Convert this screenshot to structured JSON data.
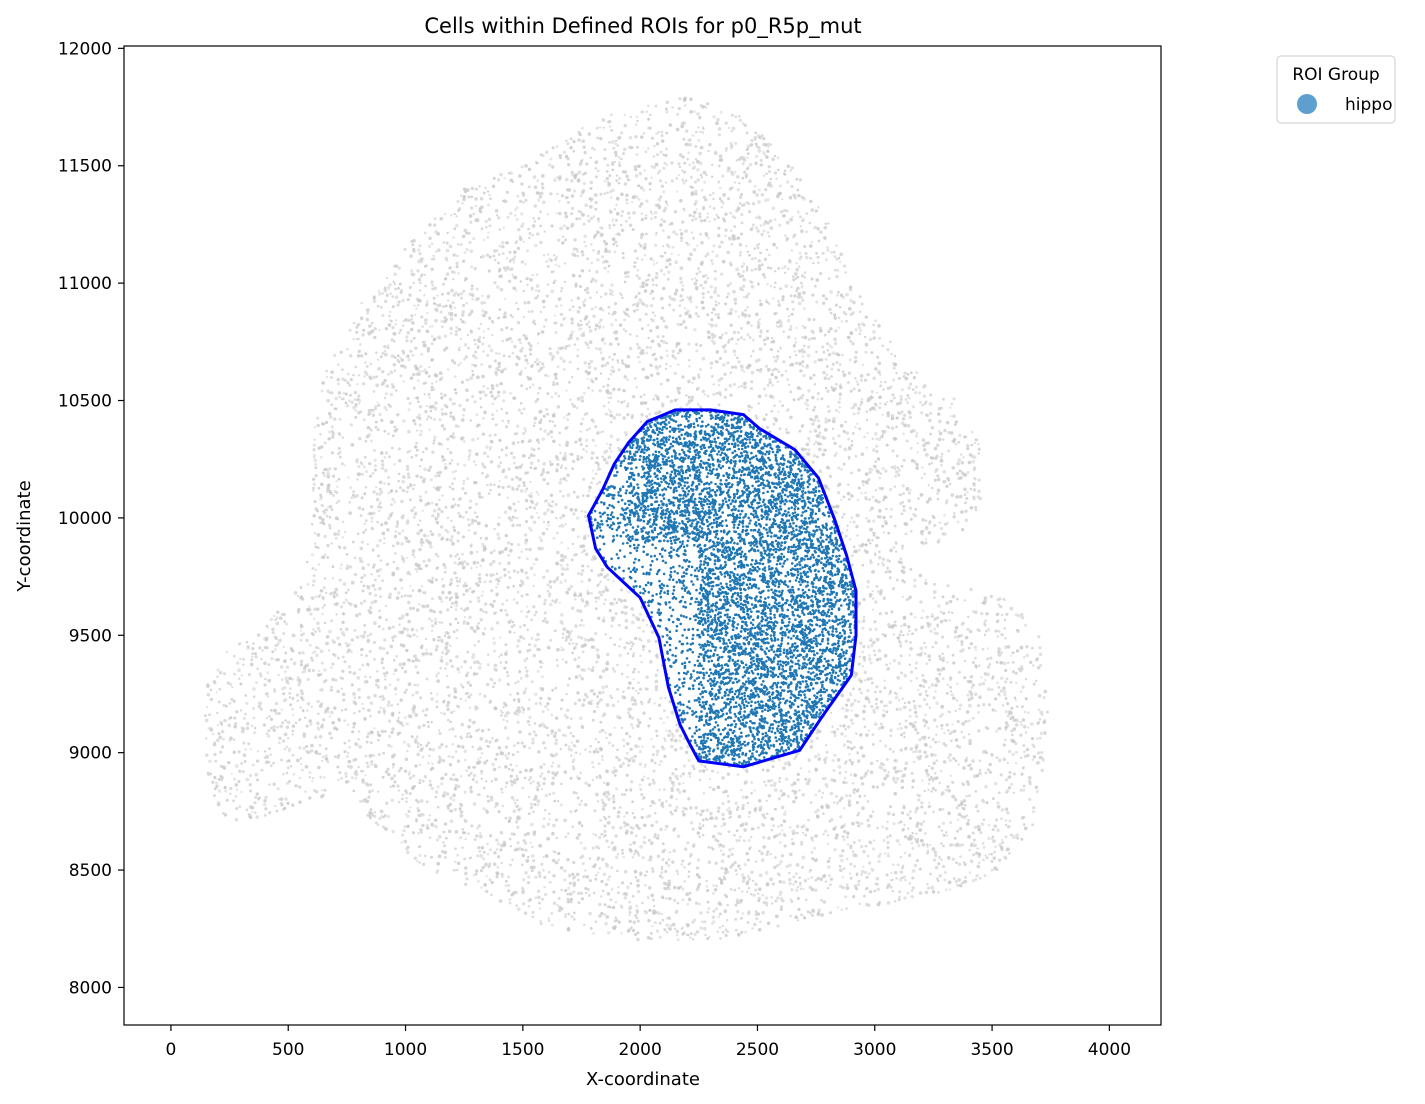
{
  "chart_data": {
    "type": "scatter",
    "title": "Cells within Defined ROIs for p0_R5p_mut",
    "xlabel": "X-coordinate",
    "ylabel": "Y-coordinate",
    "xlim": [
      -200,
      4220
    ],
    "ylim": [
      7840,
      12010
    ],
    "x_ticks": [
      0,
      500,
      1000,
      1500,
      2000,
      2500,
      3000,
      3500,
      4000
    ],
    "y_ticks": [
      8000,
      8500,
      9000,
      9500,
      10000,
      10500,
      11000,
      11500,
      12000
    ],
    "x_tick_labels": [
      "0",
      "500",
      "1000",
      "1500",
      "2000",
      "2500",
      "3000",
      "3500",
      "4000"
    ],
    "y_tick_labels": [
      "8000",
      "8500",
      "9000",
      "9500",
      "10000",
      "10500",
      "11000",
      "11500",
      "12000"
    ],
    "grid": false,
    "legend": {
      "title": "ROI Group",
      "placement": "outside-top-right",
      "entries": [
        {
          "label": "hippo",
          "color": "#5f9fcf"
        }
      ]
    },
    "series": [
      {
        "name": "hippo",
        "role": "cells inside ROI",
        "color": "#1f77b4",
        "point_count_approx": 9000,
        "hull_polygon": [
          [
            1780,
            10010
          ],
          [
            1810,
            9870
          ],
          [
            1860,
            9790
          ],
          [
            2000,
            9660
          ],
          [
            2080,
            9490
          ],
          [
            2120,
            9280
          ],
          [
            2170,
            9120
          ],
          [
            2210,
            9040
          ],
          [
            2250,
            8965
          ],
          [
            2440,
            8940
          ],
          [
            2680,
            9010
          ],
          [
            2780,
            9160
          ],
          [
            2900,
            9330
          ],
          [
            2920,
            9500
          ],
          [
            2920,
            9690
          ],
          [
            2880,
            9840
          ],
          [
            2830,
            9990
          ],
          [
            2760,
            10170
          ],
          [
            2660,
            10290
          ],
          [
            2510,
            10380
          ],
          [
            2440,
            10440
          ],
          [
            2300,
            10460
          ],
          [
            2150,
            10460
          ],
          [
            2030,
            10410
          ],
          [
            1950,
            10320
          ],
          [
            1890,
            10230
          ],
          [
            1840,
            10120
          ]
        ]
      },
      {
        "name": "",
        "role": "all cells (background)",
        "color": "#c8c8c8",
        "point_count_approx": 30000,
        "outline_polygon": [
          [
            130,
            9100
          ],
          [
            150,
            8850
          ],
          [
            250,
            8700
          ],
          [
            400,
            8720
          ],
          [
            550,
            8780
          ],
          [
            750,
            8850
          ],
          [
            900,
            8650
          ],
          [
            1100,
            8500
          ],
          [
            1350,
            8400
          ],
          [
            1600,
            8250
          ],
          [
            2000,
            8200
          ],
          [
            2300,
            8200
          ],
          [
            2550,
            8250
          ],
          [
            2750,
            8300
          ],
          [
            3000,
            8350
          ],
          [
            3300,
            8400
          ],
          [
            3550,
            8500
          ],
          [
            3680,
            8700
          ],
          [
            3720,
            8950
          ],
          [
            3750,
            9150
          ],
          [
            3700,
            9500
          ],
          [
            3600,
            9650
          ],
          [
            3400,
            9700
          ],
          [
            3200,
            9750
          ],
          [
            3100,
            9850
          ],
          [
            3300,
            9900
          ],
          [
            3450,
            10000
          ],
          [
            3450,
            10300
          ],
          [
            3350,
            10500
          ],
          [
            3200,
            10600
          ],
          [
            3050,
            10800
          ],
          [
            2900,
            11000
          ],
          [
            2800,
            11300
          ],
          [
            2650,
            11500
          ],
          [
            2450,
            11700
          ],
          [
            2200,
            11800
          ],
          [
            1800,
            11700
          ],
          [
            1500,
            11500
          ],
          [
            1250,
            11400
          ],
          [
            1000,
            11150
          ],
          [
            800,
            10900
          ],
          [
            650,
            10600
          ],
          [
            600,
            10300
          ],
          [
            600,
            9950
          ],
          [
            550,
            9700
          ],
          [
            400,
            9550
          ],
          [
            250,
            9450
          ],
          [
            150,
            9300
          ]
        ]
      }
    ],
    "hull_color": "#0000ff"
  }
}
